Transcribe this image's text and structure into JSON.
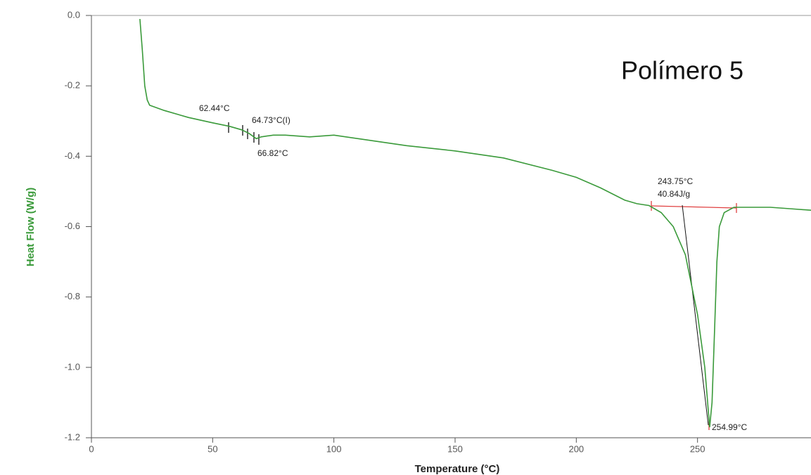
{
  "chart_data": {
    "type": "line",
    "title": "Polímero 5",
    "x_label": "Temperature (°C)",
    "y_label": "Heat Flow (W/g)",
    "x": [
      20,
      21,
      22,
      23,
      24,
      30,
      40,
      50,
      57,
      62,
      65,
      68,
      70,
      75,
      80,
      90,
      100,
      110,
      130,
      150,
      170,
      190,
      200,
      210,
      220,
      225,
      230,
      235,
      240,
      245,
      250,
      253,
      255,
      256,
      257,
      258,
      259,
      261,
      265,
      270,
      280,
      290,
      300
    ],
    "values": [
      -0.01,
      -0.1,
      -0.2,
      -0.24,
      -0.255,
      -0.27,
      -0.29,
      -0.305,
      -0.315,
      -0.325,
      -0.335,
      -0.35,
      -0.345,
      -0.34,
      -0.34,
      -0.345,
      -0.34,
      -0.35,
      -0.37,
      -0.385,
      -0.405,
      -0.44,
      -0.46,
      -0.49,
      -0.525,
      -0.535,
      -0.54,
      -0.56,
      -0.6,
      -0.68,
      -0.85,
      -1.0,
      -1.17,
      -1.1,
      -0.9,
      -0.7,
      -0.6,
      -0.56,
      -0.545,
      -0.545,
      -0.545,
      -0.55,
      -0.555
    ],
    "color": "#3a9a3a",
    "xlim": [
      0,
      300
    ],
    "xticks": [
      0,
      50,
      100,
      150,
      200,
      250,
      300
    ],
    "ylim": [
      -1.2,
      0
    ],
    "yticks": [
      {
        "value": 0,
        "label": "0.0"
      },
      -0.2,
      -0.4,
      -0.6,
      -0.8,
      {
        "value": -1,
        "label": "-1.0"
      },
      -1.2
    ],
    "annotations": [
      "62.44°C",
      "64.73°C(I)",
      "66.82°C",
      "243.75°C",
      "40.84J/g",
      "254.99°C"
    ]
  }
}
